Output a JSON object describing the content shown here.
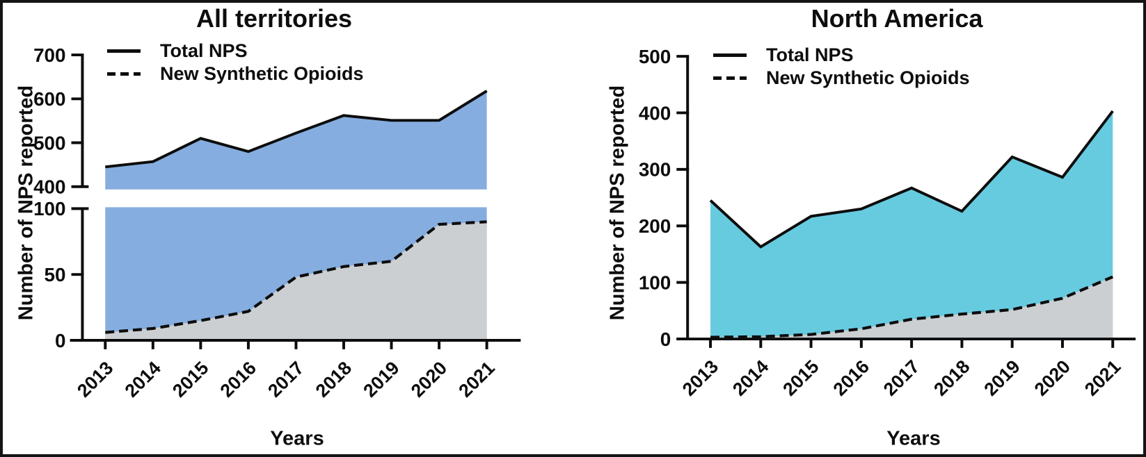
{
  "frame": {
    "background": "#ffffff",
    "border_color": "#141414"
  },
  "axis": {
    "line_color": "#0d0d0d"
  },
  "chart_data": [
    {
      "type": "area",
      "title": "All territories",
      "xlabel": "Years",
      "ylabel": "Number of NPS reported",
      "categories": [
        "2013",
        "2014",
        "2015",
        "2016",
        "2017",
        "2018",
        "2019",
        "2020",
        "2021"
      ],
      "series": [
        {
          "name": "Total NPS",
          "line": "solid",
          "fill": "#85ADDF",
          "values": [
            445,
            457,
            510,
            480,
            522,
            562,
            551,
            551,
            618
          ]
        },
        {
          "name": "New Synthetic Opioids",
          "line": "dashed",
          "fill": "#CBCFD2",
          "values": [
            6,
            9,
            15,
            22,
            48,
            56,
            60,
            88,
            90
          ]
        }
      ],
      "y_axis_break": true,
      "y_segments": [
        {
          "range": [
            400,
            700
          ],
          "ticks": [
            400,
            500,
            600,
            700
          ]
        },
        {
          "range": [
            0,
            100
          ],
          "ticks": [
            0,
            50,
            100
          ]
        }
      ],
      "legend_position": "top-left",
      "grid": false
    },
    {
      "type": "area",
      "title": "North America",
      "xlabel": "Years",
      "ylabel": "Number of NPS reported",
      "categories": [
        "2013",
        "2014",
        "2015",
        "2016",
        "2017",
        "2018",
        "2019",
        "2020",
        "2021"
      ],
      "series": [
        {
          "name": "Total NPS",
          "line": "solid",
          "fill": "#67CBE0",
          "values": [
            245,
            163,
            217,
            230,
            267,
            226,
            322,
            286,
            403
          ]
        },
        {
          "name": "New Synthetic Opioids",
          "line": "dashed",
          "fill": "#CBCFD2",
          "values": [
            3,
            4,
            8,
            18,
            35,
            44,
            52,
            72,
            110
          ]
        }
      ],
      "y_axis_break": false,
      "y_segments": [
        {
          "range": [
            0,
            500
          ],
          "ticks": [
            0,
            100,
            200,
            300,
            400,
            500
          ]
        }
      ],
      "legend_position": "top-left",
      "grid": false
    }
  ]
}
